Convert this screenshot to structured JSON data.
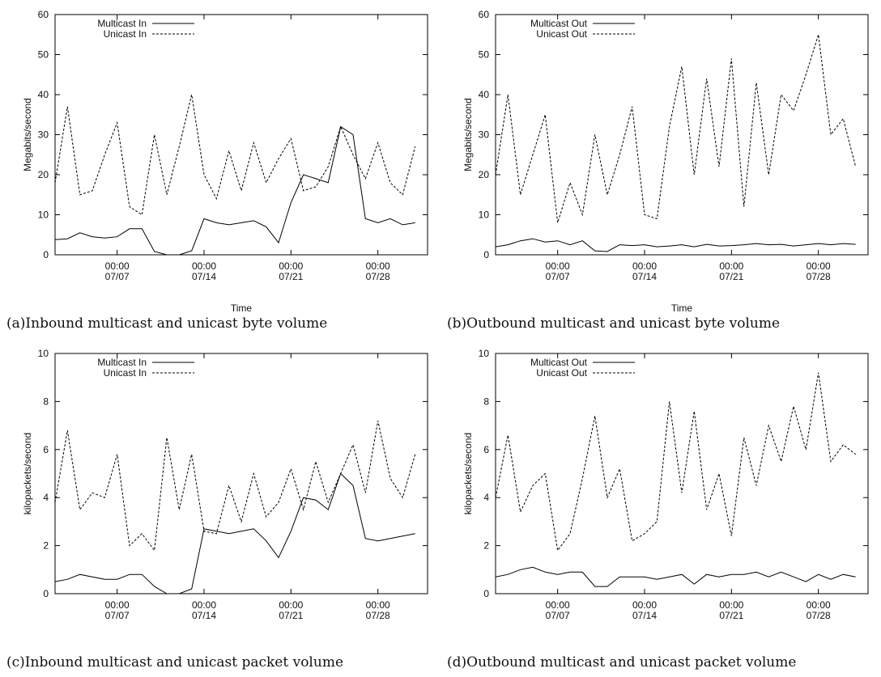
{
  "panels": [
    {
      "caption": "(a)Inbound multicast and unicast byte volume",
      "chart_data": {
        "type": "line",
        "xlabel": "Time",
        "ylabel": "Megabits/second",
        "ylim": [
          0,
          60
        ],
        "yticks": [
          0,
          10,
          20,
          30,
          40,
          50,
          60
        ],
        "xlim": [
          "2010-07-02",
          "2010-08-01"
        ],
        "xticks": [
          {
            "date": "2010-07-07",
            "label": [
              "00:00",
              "07/07"
            ]
          },
          {
            "date": "2010-07-14",
            "label": [
              "00:00",
              "07/14"
            ]
          },
          {
            "date": "2010-07-21",
            "label": [
              "00:00",
              "07/21"
            ]
          },
          {
            "date": "2010-07-28",
            "label": [
              "00:00",
              "07/28"
            ]
          }
        ],
        "legend_position": "top-left",
        "series": [
          {
            "name": "Multicast In",
            "style": "solid",
            "x": [
              "2010-07-02",
              "2010-07-03",
              "2010-07-04",
              "2010-07-05",
              "2010-07-06",
              "2010-07-07",
              "2010-07-08",
              "2010-07-09",
              "2010-07-10",
              "2010-07-11",
              "2010-07-12",
              "2010-07-13",
              "2010-07-14",
              "2010-07-15",
              "2010-07-16",
              "2010-07-17",
              "2010-07-18",
              "2010-07-19",
              "2010-07-20",
              "2010-07-21",
              "2010-07-22",
              "2010-07-23",
              "2010-07-24",
              "2010-07-25",
              "2010-07-26",
              "2010-07-27",
              "2010-07-28",
              "2010-07-29",
              "2010-07-30",
              "2010-07-31"
            ],
            "y": [
              3.8,
              4,
              5.5,
              4.5,
              4.2,
              4.5,
              6.5,
              6.5,
              0.8,
              0,
              0,
              1,
              9,
              8,
              7.5,
              8,
              8.5,
              7,
              3,
              13,
              20,
              19,
              18,
              32,
              30,
              9,
              8,
              9,
              7.5,
              8
            ]
          },
          {
            "name": "Unicast In",
            "style": "dashed",
            "x": [
              "2010-07-02",
              "2010-07-03",
              "2010-07-04",
              "2010-07-05",
              "2010-07-06",
              "2010-07-07",
              "2010-07-08",
              "2010-07-09",
              "2010-07-10",
              "2010-07-11",
              "2010-07-12",
              "2010-07-13",
              "2010-07-14",
              "2010-07-15",
              "2010-07-16",
              "2010-07-17",
              "2010-07-18",
              "2010-07-19",
              "2010-07-20",
              "2010-07-21",
              "2010-07-22",
              "2010-07-23",
              "2010-07-24",
              "2010-07-25",
              "2010-07-26",
              "2010-07-27",
              "2010-07-28",
              "2010-07-29",
              "2010-07-30",
              "2010-07-31"
            ],
            "y": [
              18,
              37,
              15,
              16,
              25,
              33,
              12,
              10,
              30,
              15,
              27,
              40,
              20,
              14,
              26,
              16,
              28,
              18,
              24,
              29,
              16,
              17,
              22,
              32,
              25,
              19,
              28,
              18,
              15,
              27
            ]
          }
        ]
      }
    },
    {
      "caption": "(b)Outbound multicast and unicast byte volume",
      "chart_data": {
        "type": "line",
        "xlabel": "Time",
        "ylabel": "Megabits/second",
        "ylim": [
          0,
          60
        ],
        "yticks": [
          0,
          10,
          20,
          30,
          40,
          50,
          60
        ],
        "xlim": [
          "2010-07-02",
          "2010-08-01"
        ],
        "xticks": [
          {
            "date": "2010-07-07",
            "label": [
              "00:00",
              "07/07"
            ]
          },
          {
            "date": "2010-07-14",
            "label": [
              "00:00",
              "07/14"
            ]
          },
          {
            "date": "2010-07-21",
            "label": [
              "00:00",
              "07/21"
            ]
          },
          {
            "date": "2010-07-28",
            "label": [
              "00:00",
              "07/28"
            ]
          }
        ],
        "legend_position": "top-left",
        "series": [
          {
            "name": "Multicast Out",
            "style": "solid",
            "x": [
              "2010-07-02",
              "2010-07-03",
              "2010-07-04",
              "2010-07-05",
              "2010-07-06",
              "2010-07-07",
              "2010-07-08",
              "2010-07-09",
              "2010-07-10",
              "2010-07-11",
              "2010-07-12",
              "2010-07-13",
              "2010-07-14",
              "2010-07-15",
              "2010-07-16",
              "2010-07-17",
              "2010-07-18",
              "2010-07-19",
              "2010-07-20",
              "2010-07-21",
              "2010-07-22",
              "2010-07-23",
              "2010-07-24",
              "2010-07-25",
              "2010-07-26",
              "2010-07-27",
              "2010-07-28",
              "2010-07-29",
              "2010-07-30",
              "2010-07-31"
            ],
            "y": [
              2,
              2.5,
              3.5,
              4,
              3.2,
              3.5,
              2.5,
              3.5,
              1,
              0.8,
              2.5,
              2.3,
              2.5,
              2,
              2.2,
              2.5,
              2,
              2.6,
              2.2,
              2.3,
              2.5,
              2.8,
              2.5,
              2.6,
              2.2,
              2.5,
              2.8,
              2.5,
              2.8,
              2.6
            ]
          },
          {
            "name": "Unicast Out",
            "style": "dashed",
            "x": [
              "2010-07-02",
              "2010-07-03",
              "2010-07-04",
              "2010-07-05",
              "2010-07-06",
              "2010-07-07",
              "2010-07-08",
              "2010-07-09",
              "2010-07-10",
              "2010-07-11",
              "2010-07-12",
              "2010-07-13",
              "2010-07-14",
              "2010-07-15",
              "2010-07-16",
              "2010-07-17",
              "2010-07-18",
              "2010-07-19",
              "2010-07-20",
              "2010-07-21",
              "2010-07-22",
              "2010-07-23",
              "2010-07-24",
              "2010-07-25",
              "2010-07-26",
              "2010-07-27",
              "2010-07-28",
              "2010-07-29",
              "2010-07-30",
              "2010-07-31"
            ],
            "y": [
              20,
              40,
              15,
              25,
              35,
              8,
              18,
              10,
              30,
              15,
              25,
              37,
              10,
              9,
              32,
              47,
              20,
              44,
              22,
              49,
              12,
              43,
              20,
              40,
              36,
              45,
              55,
              30,
              34,
              22
            ]
          }
        ]
      }
    },
    {
      "caption": "(c)Inbound multicast and unicast packet volume",
      "chart_data": {
        "type": "line",
        "xlabel": "",
        "ylabel": "kilopackets/second",
        "ylim": [
          0,
          10
        ],
        "yticks": [
          0,
          2,
          4,
          6,
          8,
          10
        ],
        "xlim": [
          "2010-07-02",
          "2010-08-01"
        ],
        "xticks": [
          {
            "date": "2010-07-07",
            "label": [
              "00:00",
              "07/07"
            ]
          },
          {
            "date": "2010-07-14",
            "label": [
              "00:00",
              "07/14"
            ]
          },
          {
            "date": "2010-07-21",
            "label": [
              "00:00",
              "07/21"
            ]
          },
          {
            "date": "2010-07-28",
            "label": [
              "00:00",
              "07/28"
            ]
          }
        ],
        "legend_position": "top-left",
        "series": [
          {
            "name": "Multicast In",
            "style": "solid",
            "x": [
              "2010-07-02",
              "2010-07-03",
              "2010-07-04",
              "2010-07-05",
              "2010-07-06",
              "2010-07-07",
              "2010-07-08",
              "2010-07-09",
              "2010-07-10",
              "2010-07-11",
              "2010-07-12",
              "2010-07-13",
              "2010-07-14",
              "2010-07-15",
              "2010-07-16",
              "2010-07-17",
              "2010-07-18",
              "2010-07-19",
              "2010-07-20",
              "2010-07-21",
              "2010-07-22",
              "2010-07-23",
              "2010-07-24",
              "2010-07-25",
              "2010-07-26",
              "2010-07-27",
              "2010-07-28",
              "2010-07-29",
              "2010-07-30",
              "2010-07-31"
            ],
            "y": [
              0.5,
              0.6,
              0.8,
              0.7,
              0.6,
              0.6,
              0.8,
              0.8,
              0.3,
              0,
              0,
              0.2,
              2.7,
              2.6,
              2.5,
              2.6,
              2.7,
              2.2,
              1.5,
              2.6,
              4,
              3.9,
              3.5,
              5,
              4.5,
              2.3,
              2.2,
              2.3,
              2.4,
              2.5
            ]
          },
          {
            "name": "Unicast In",
            "style": "dashed",
            "x": [
              "2010-07-02",
              "2010-07-03",
              "2010-07-04",
              "2010-07-05",
              "2010-07-06",
              "2010-07-07",
              "2010-07-08",
              "2010-07-09",
              "2010-07-10",
              "2010-07-11",
              "2010-07-12",
              "2010-07-13",
              "2010-07-14",
              "2010-07-15",
              "2010-07-16",
              "2010-07-17",
              "2010-07-18",
              "2010-07-19",
              "2010-07-20",
              "2010-07-21",
              "2010-07-22",
              "2010-07-23",
              "2010-07-24",
              "2010-07-25",
              "2010-07-26",
              "2010-07-27",
              "2010-07-28",
              "2010-07-29",
              "2010-07-30",
              "2010-07-31"
            ],
            "y": [
              3.8,
              6.8,
              3.5,
              4.2,
              4,
              5.8,
              2,
              2.5,
              1.8,
              6.5,
              3.5,
              5.8,
              2.6,
              2.5,
              4.5,
              3,
              5,
              3.2,
              3.8,
              5.2,
              3.5,
              5.5,
              3.8,
              5,
              6.2,
              4.2,
              7.2,
              4.8,
              4,
              5.8
            ]
          }
        ]
      }
    },
    {
      "caption": "(d)Outbound multicast and unicast packet volume",
      "chart_data": {
        "type": "line",
        "xlabel": "",
        "ylabel": "kilopackets/second",
        "ylim": [
          0,
          10
        ],
        "yticks": [
          0,
          2,
          4,
          6,
          8,
          10
        ],
        "xlim": [
          "2010-07-02",
          "2010-08-01"
        ],
        "xticks": [
          {
            "date": "2010-07-07",
            "label": [
              "00:00",
              "07/07"
            ]
          },
          {
            "date": "2010-07-14",
            "label": [
              "00:00",
              "07/14"
            ]
          },
          {
            "date": "2010-07-21",
            "label": [
              "00:00",
              "07/21"
            ]
          },
          {
            "date": "2010-07-28",
            "label": [
              "00:00",
              "07/28"
            ]
          }
        ],
        "legend_position": "top-left",
        "series": [
          {
            "name": "Multicast Out",
            "style": "solid",
            "x": [
              "2010-07-02",
              "2010-07-03",
              "2010-07-04",
              "2010-07-05",
              "2010-07-06",
              "2010-07-07",
              "2010-07-08",
              "2010-07-09",
              "2010-07-10",
              "2010-07-11",
              "2010-07-12",
              "2010-07-13",
              "2010-07-14",
              "2010-07-15",
              "2010-07-16",
              "2010-07-17",
              "2010-07-18",
              "2010-07-19",
              "2010-07-20",
              "2010-07-21",
              "2010-07-22",
              "2010-07-23",
              "2010-07-24",
              "2010-07-25",
              "2010-07-26",
              "2010-07-27",
              "2010-07-28",
              "2010-07-29",
              "2010-07-30",
              "2010-07-31"
            ],
            "y": [
              0.7,
              0.8,
              1,
              1.1,
              0.9,
              0.8,
              0.9,
              0.9,
              0.3,
              0.3,
              0.7,
              0.7,
              0.7,
              0.6,
              0.7,
              0.8,
              0.4,
              0.8,
              0.7,
              0.8,
              0.8,
              0.9,
              0.7,
              0.9,
              0.7,
              0.5,
              0.8,
              0.6,
              0.8,
              0.7
            ]
          },
          {
            "name": "Unicast Out",
            "style": "dashed",
            "x": [
              "2010-07-02",
              "2010-07-03",
              "2010-07-04",
              "2010-07-05",
              "2010-07-06",
              "2010-07-07",
              "2010-07-08",
              "2010-07-09",
              "2010-07-10",
              "2010-07-11",
              "2010-07-12",
              "2010-07-13",
              "2010-07-14",
              "2010-07-15",
              "2010-07-16",
              "2010-07-17",
              "2010-07-18",
              "2010-07-19",
              "2010-07-20",
              "2010-07-21",
              "2010-07-22",
              "2010-07-23",
              "2010-07-24",
              "2010-07-25",
              "2010-07-26",
              "2010-07-27",
              "2010-07-28",
              "2010-07-29",
              "2010-07-30",
              "2010-07-31"
            ],
            "y": [
              4,
              6.6,
              3.4,
              4.5,
              5,
              1.8,
              2.5,
              4.8,
              7.4,
              4,
              5.2,
              2.2,
              2.5,
              3,
              8,
              4.2,
              7.6,
              3.5,
              5,
              2.4,
              6.5,
              4.5,
              7,
              5.5,
              7.8,
              6,
              9.2,
              5.5,
              6.2,
              5.8
            ]
          }
        ]
      }
    }
  ]
}
